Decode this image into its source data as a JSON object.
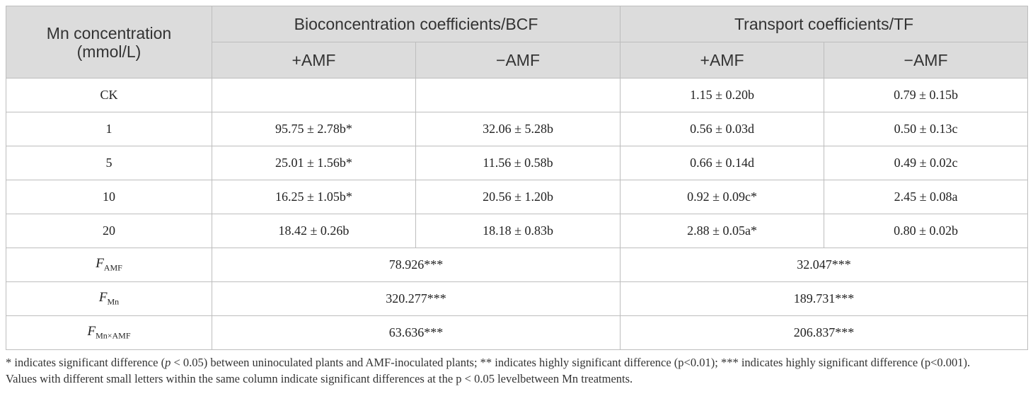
{
  "table": {
    "header": {
      "corner": "Mn concentration (mmol/L)",
      "groups": [
        {
          "title": "Bioconcentration coefficients/BCF",
          "columns": [
            "+AMF",
            "−AMF"
          ]
        },
        {
          "title": "Transport coefficients/TF",
          "columns": [
            "+AMF",
            "−AMF"
          ]
        }
      ]
    },
    "rows": [
      {
        "label": "CK",
        "tf": [
          "1.15 ± 0.20b",
          "0.79 ± 0.15b"
        ]
      },
      {
        "label": "1",
        "bcf": [
          "95.75 ± 2.78b*",
          "32.06 ± 5.28b"
        ],
        "tf": [
          "0.56 ± 0.03d",
          "0.50 ± 0.13c"
        ]
      },
      {
        "label": "5",
        "bcf": [
          "25.01 ± 1.56b*",
          "11.56 ± 0.58b"
        ],
        "tf": [
          "0.66 ± 0.14d",
          "0.49 ± 0.02c"
        ]
      },
      {
        "label": "10",
        "bcf": [
          "16.25 ± 1.05b*",
          "20.56 ± 1.20b"
        ],
        "tf": [
          "0.92 ± 0.09c*",
          "2.45 ± 0.08a"
        ]
      },
      {
        "label": "20",
        "bcf": [
          "18.42 ± 0.26b",
          "18.18 ± 0.83b"
        ],
        "tf": [
          "2.88 ± 0.05a*",
          "0.80 ± 0.02b"
        ]
      }
    ],
    "f_rows": [
      {
        "label": {
          "main": "F",
          "sub": "AMF"
        },
        "bcf": "78.926***",
        "tf": "32.047***"
      },
      {
        "label": {
          "main": "F",
          "sub": "Mn"
        },
        "bcf": "320.277***",
        "tf": "189.731***"
      },
      {
        "label": {
          "main": "F",
          "sub": "Mn×AMF"
        },
        "bcf": "63.636***",
        "tf": "206.837***"
      }
    ]
  },
  "footnotes": [
    [
      "* indicates significant difference (",
      "p",
      " < 0.05) between uninoculated plants and AMF-inoculated plants; ** indicates highly significant difference (p<0.01); *** indicates highly significant difference (p<0.001)."
    ],
    [
      "Values with different small letters within the same column indicate significant differences at the p < 0.05 levelbetween Mn treatments."
    ]
  ]
}
